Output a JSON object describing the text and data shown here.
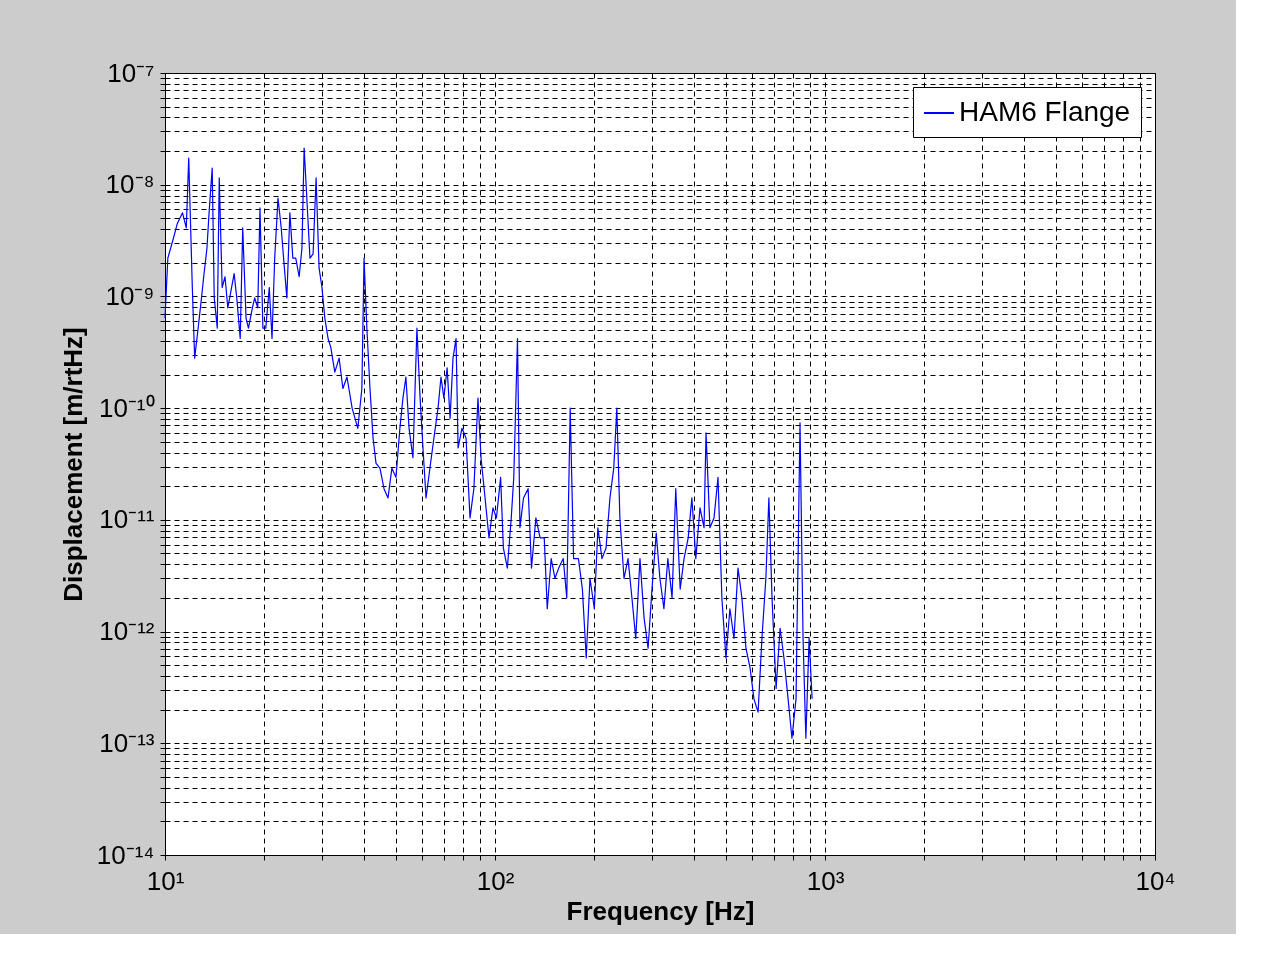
{
  "chart_data": {
    "type": "line",
    "xlabel": "Frequency [Hz]",
    "ylabel": "Displacement [m/rtHz]",
    "log": "xy",
    "grid": true,
    "legend": "top right",
    "line_style": "solid",
    "marker": "none",
    "xlim": [
      10,
      10000
    ],
    "ylim": [
      1e-14,
      1e-07
    ],
    "xticks": [
      {
        "value": 10,
        "label": "10¹"
      },
      {
        "value": 20,
        "label": null
      },
      {
        "value": 30,
        "label": null
      },
      {
        "value": 40,
        "label": null
      },
      {
        "value": 50,
        "label": null
      },
      {
        "value": 60,
        "label": null
      },
      {
        "value": 70,
        "label": null
      },
      {
        "value": 80,
        "label": null
      },
      {
        "value": 90,
        "label": null
      },
      {
        "value": 100,
        "label": "10²"
      },
      {
        "value": 200,
        "label": null
      },
      {
        "value": 300,
        "label": null
      },
      {
        "value": 400,
        "label": null
      },
      {
        "value": 500,
        "label": null
      },
      {
        "value": 600,
        "label": null
      },
      {
        "value": 700,
        "label": null
      },
      {
        "value": 800,
        "label": null
      },
      {
        "value": 900,
        "label": null
      },
      {
        "value": 1000,
        "label": "10³"
      },
      {
        "value": 2000,
        "label": null
      },
      {
        "value": 3000,
        "label": null
      },
      {
        "value": 4000,
        "label": null
      },
      {
        "value": 5000,
        "label": null
      },
      {
        "value": 6000,
        "label": null
      },
      {
        "value": 7000,
        "label": null
      },
      {
        "value": 8000,
        "label": null
      },
      {
        "value": 9000,
        "label": null
      },
      {
        "value": 10000,
        "label": "10⁴"
      }
    ],
    "yticks": [
      {
        "value": 1e-14,
        "label": "10⁻¹⁴"
      },
      {
        "value": 2e-14,
        "label": null
      },
      {
        "value": 3e-14,
        "label": null
      },
      {
        "value": 4e-14,
        "label": null
      },
      {
        "value": 5e-14,
        "label": null
      },
      {
        "value": 6e-14,
        "label": null
      },
      {
        "value": 7e-14,
        "label": null
      },
      {
        "value": 8e-14,
        "label": null
      },
      {
        "value": 9e-14,
        "label": null
      },
      {
        "value": 1e-13,
        "label": "10⁻¹³"
      },
      {
        "value": 2e-13,
        "label": null
      },
      {
        "value": 3e-13,
        "label": null
      },
      {
        "value": 4e-13,
        "label": null
      },
      {
        "value": 5e-13,
        "label": null
      },
      {
        "value": 6e-13,
        "label": null
      },
      {
        "value": 7e-13,
        "label": null
      },
      {
        "value": 8e-13,
        "label": null
      },
      {
        "value": 9e-13,
        "label": null
      },
      {
        "value": 1e-12,
        "label": "10⁻¹²"
      },
      {
        "value": 2e-12,
        "label": null
      },
      {
        "value": 3e-12,
        "label": null
      },
      {
        "value": 4e-12,
        "label": null
      },
      {
        "value": 5e-12,
        "label": null
      },
      {
        "value": 6e-12,
        "label": null
      },
      {
        "value": 7e-12,
        "label": null
      },
      {
        "value": 8e-12,
        "label": null
      },
      {
        "value": 9e-12,
        "label": null
      },
      {
        "value": 1e-11,
        "label": "10⁻¹¹"
      },
      {
        "value": 2e-11,
        "label": null
      },
      {
        "value": 3e-11,
        "label": null
      },
      {
        "value": 4e-11,
        "label": null
      },
      {
        "value": 5e-11,
        "label": null
      },
      {
        "value": 6e-11,
        "label": null
      },
      {
        "value": 7e-11,
        "label": null
      },
      {
        "value": 8e-11,
        "label": null
      },
      {
        "value": 9e-11,
        "label": null
      },
      {
        "value": 1e-10,
        "label": "10⁻¹⁰"
      },
      {
        "value": 2e-10,
        "label": null
      },
      {
        "value": 3e-10,
        "label": null
      },
      {
        "value": 4e-10,
        "label": null
      },
      {
        "value": 5e-10,
        "label": null
      },
      {
        "value": 6e-10,
        "label": null
      },
      {
        "value": 7e-10,
        "label": null
      },
      {
        "value": 8e-10,
        "label": null
      },
      {
        "value": 9e-10,
        "label": null
      },
      {
        "value": 1e-09,
        "label": "10⁻⁹"
      },
      {
        "value": 2e-09,
        "label": null
      },
      {
        "value": 3e-09,
        "label": null
      },
      {
        "value": 4e-09,
        "label": null
      },
      {
        "value": 5e-09,
        "label": null
      },
      {
        "value": 6e-09,
        "label": null
      },
      {
        "value": 7e-09,
        "label": null
      },
      {
        "value": 8e-09,
        "label": null
      },
      {
        "value": 9e-09,
        "label": null
      },
      {
        "value": 1e-08,
        "label": "10⁻⁸"
      },
      {
        "value": 2e-08,
        "label": null
      },
      {
        "value": 3e-08,
        "label": null
      },
      {
        "value": 4e-08,
        "label": null
      },
      {
        "value": 5e-08,
        "label": null
      },
      {
        "value": 6e-08,
        "label": null
      },
      {
        "value": 7e-08,
        "label": null
      },
      {
        "value": 8e-08,
        "label": null
      },
      {
        "value": 9e-08,
        "label": null
      },
      {
        "value": 1e-07,
        "label": "10⁻⁷"
      }
    ],
    "series": [
      {
        "name": "HAM6 Flange",
        "color": "#0000ff",
        "x": [
          10,
          10.2,
          10.6,
          10.9,
          11.3,
          11.6,
          11.8,
          12.1,
          12.3,
          12.6,
          12.9,
          13.1,
          13.4,
          13.6,
          13.9,
          14.1,
          14.4,
          14.6,
          14.9,
          15.2,
          15.5,
          15.8,
          16.2,
          16.5,
          16.9,
          17.2,
          17.6,
          17.9,
          18.4,
          18.7,
          19.1,
          19.4,
          19.8,
          20.2,
          20.7,
          21.1,
          21.5,
          22.0,
          22.5,
          23.0,
          23.4,
          23.9,
          24.4,
          24.9,
          25.5,
          26.0,
          26.4,
          26.9,
          27.5,
          28.1,
          28.7,
          29.3,
          29.9,
          30.5,
          31.2,
          31.8,
          32.7,
          33.7,
          34.6,
          35.6,
          36.9,
          38.4,
          39.5,
          40.1,
          40.9,
          41.8,
          42.7,
          43.6,
          44.8,
          46.1,
          47.4,
          48.7,
          50.1,
          51.5,
          52.6,
          53.7,
          54.9,
          56.4,
          58.0,
          59.3,
          60.5,
          61.8,
          63.5,
          65.3,
          67.2,
          68.6,
          70.0,
          71.6,
          73.1,
          74.6,
          76.2,
          77.3,
          79.4,
          81.7,
          84.0,
          86.3,
          88.8,
          90.7,
          93.3,
          95.9,
          98.6,
          101,
          104,
          106,
          109,
          112,
          114,
          117,
          119,
          122,
          126,
          129,
          133,
          137,
          141,
          144,
          148,
          152,
          156,
          161,
          165,
          169,
          173,
          179,
          184,
          189,
          194,
          200,
          205,
          211,
          217,
          223,
          229,
          234,
          239,
          246,
          253,
          260,
          267,
          275,
          283,
          291,
          299,
          308,
          316,
          325,
          334,
          344,
          353,
          364,
          374,
          385,
          395,
          406,
          418,
          430,
          436,
          448,
          461,
          474,
          487,
          501,
          515,
          530,
          545,
          560,
          576,
          593,
          609,
          627,
          644,
          662,
          676,
          691,
          711,
          731,
          751,
          773,
          794,
          817,
          840,
          858,
          875,
          895,
          914
        ],
        "values": [
          6.4e-10,
          2.2e-09,
          3.3e-09,
          4.5e-09,
          5.6e-09,
          4.1e-09,
          1.73e-08,
          1.2e-09,
          2.8e-10,
          5.2e-10,
          9.7e-10,
          1.5e-09,
          2.7e-09,
          5.6e-09,
          1.41e-08,
          9.7e-10,
          5.2e-10,
          1.15e-08,
          1.2e-09,
          1.5e-09,
          7.9e-10,
          1.07e-09,
          1.6e-09,
          9.7e-10,
          4.2e-10,
          4.1e-09,
          6.4e-10,
          5.2e-10,
          7.9e-10,
          9.7e-10,
          7.9e-10,
          6.2e-09,
          5.2e-10,
          5.2e-10,
          1.2e-09,
          4.2e-10,
          2.2e-09,
          7.6e-09,
          4.1e-09,
          1.8e-09,
          9.7e-10,
          5.6e-09,
          2.2e-09,
          2.2e-09,
          1.5e-09,
          2.7e-09,
          2.13e-08,
          7.6e-09,
          2.2e-09,
          2.4e-09,
          1.15e-08,
          1.8e-09,
          1.2e-09,
          6.4e-10,
          4.2e-10,
          3.5e-10,
          2.1e-10,
          2.8e-10,
          1.5e-10,
          1.9e-10,
          1e-10,
          6.6e-11,
          1.5e-10,
          2.2e-09,
          5.2e-10,
          1.5e-10,
          5.4e-11,
          3.2e-11,
          2.9e-11,
          1.9e-11,
          1.57e-11,
          2.9e-11,
          2.4e-11,
          6.6e-11,
          1.23e-10,
          1.9e-10,
          6.6e-11,
          3.6e-11,
          5.2e-10,
          1.23e-10,
          4.4e-11,
          1.57e-11,
          2.9e-11,
          5.4e-11,
          1e-10,
          1.9e-10,
          1.23e-10,
          2.3e-10,
          8.1e-11,
          2.8e-10,
          4.2e-10,
          4.4e-11,
          6.6e-11,
          5.4e-11,
          1.04e-11,
          1.9e-11,
          1.23e-10,
          3.6e-11,
          1.57e-11,
          6.9e-12,
          1.28e-11,
          1.04e-11,
          2.4e-11,
          5.6e-12,
          3.7e-12,
          1.04e-11,
          2.4e-11,
          4.2e-10,
          8.5e-12,
          1.57e-11,
          1.9e-11,
          3.7e-12,
          1.04e-11,
          6.9e-12,
          6.9e-12,
          1.6e-12,
          4.5e-12,
          3e-12,
          3.7e-12,
          4.5e-12,
          2e-12,
          1e-10,
          4.5e-12,
          4.5e-12,
          2.4e-12,
          5.8e-13,
          3e-12,
          1.6e-12,
          8.5e-12,
          4.5e-12,
          5.6e-12,
          1.57e-11,
          2.9e-11,
          1e-10,
          1.04e-11,
          3e-12,
          4.5e-12,
          2e-12,
          8.7e-13,
          4.5e-12,
          1.32e-12,
          7.1e-13,
          2.4e-12,
          7.6e-12,
          3e-12,
          1.6e-12,
          4.5e-12,
          2e-12,
          1.9e-11,
          2.4e-12,
          4.5e-12,
          6.9e-12,
          1.57e-11,
          4.5e-12,
          1.28e-11,
          8.5e-12,
          6e-11,
          8.5e-12,
          1.04e-11,
          2.4e-11,
          2e-12,
          5.8e-13,
          1.6e-12,
          8.7e-13,
          3.7e-12,
          2e-12,
          7.1e-13,
          4.7e-13,
          2.5e-13,
          1.9e-13,
          8.7e-13,
          3e-12,
          1.57e-11,
          2e-12,
          3.1e-13,
          1.07e-12,
          5.8e-13,
          2.5e-13,
          1.11e-13,
          2.5e-13,
          7.4e-11,
          8.7e-13,
          1.11e-13,
          8.7e-13,
          2.5e-13
        ]
      }
    ]
  }
}
